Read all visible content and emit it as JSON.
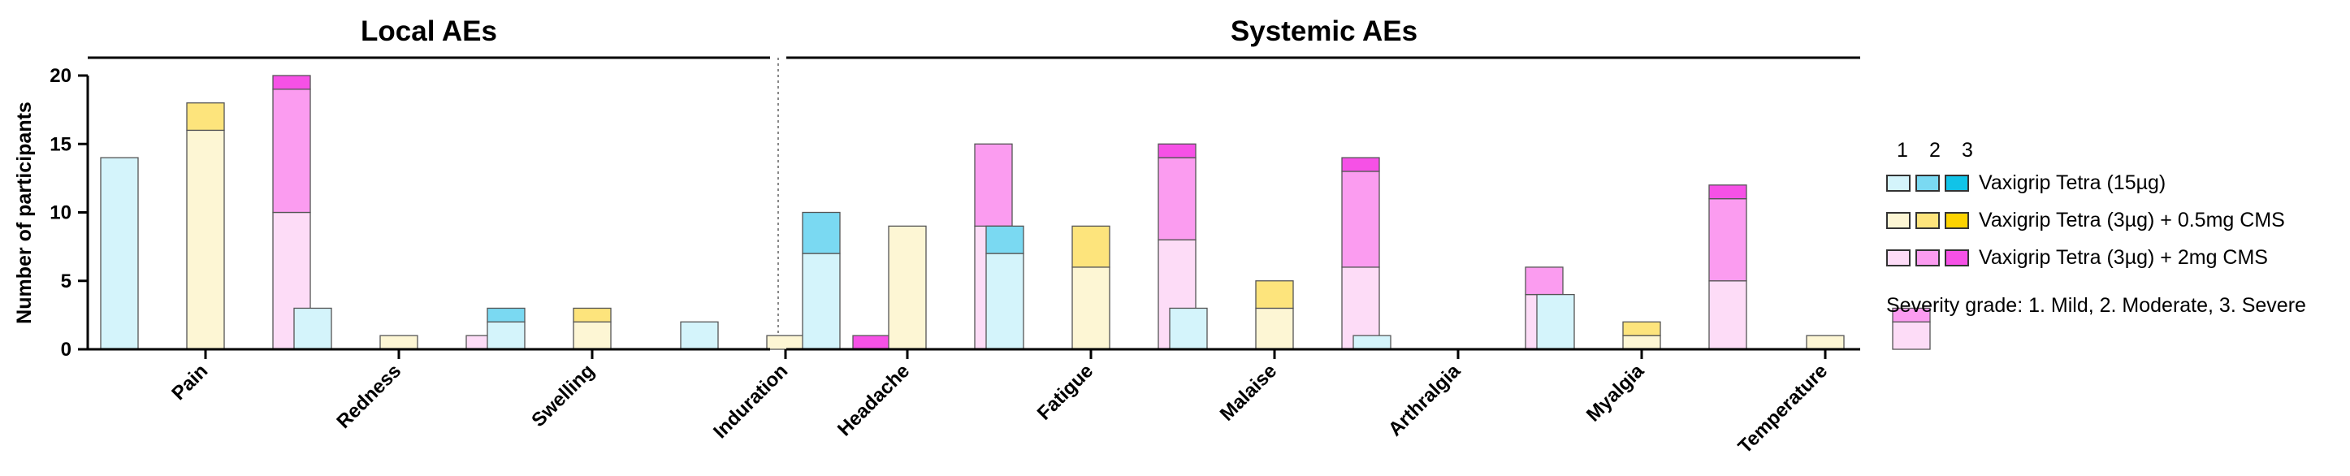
{
  "chart_data": {
    "type": "bar",
    "stacked": true,
    "ylabel": "Number of participants",
    "ylim": [
      0,
      20
    ],
    "yticks": [
      0,
      5,
      10,
      15,
      20
    ],
    "severity_labels": [
      "1",
      "2",
      "3"
    ],
    "groups": [
      {
        "name": "Vaxigrip Tetra (15µg)",
        "colors": [
          "#d4f4fb",
          "#7ad9f2",
          "#11c3e8"
        ]
      },
      {
        "name": "Vaxigrip Tetra (3µg) + 0.5mg CMS",
        "colors": [
          "#fdf6d4",
          "#fde47c",
          "#fdd300"
        ]
      },
      {
        "name": "Vaxigrip Tetra (3µg) + 2mg CMS",
        "colors": [
          "#fddcf7",
          "#fb9cf0",
          "#f651e6"
        ]
      }
    ],
    "panels": [
      {
        "title": "Local AEs",
        "categories": [
          "Pain",
          "Redness",
          "Swelling",
          "Induration"
        ],
        "data": [
          [
            [
              14,
              0,
              0
            ],
            [
              16,
              2,
              0
            ],
            [
              10,
              9,
              1
            ]
          ],
          [
            [
              3,
              0,
              0
            ],
            [
              1,
              0,
              0
            ],
            [
              1,
              0,
              0
            ]
          ],
          [
            [
              2,
              1,
              0
            ],
            [
              2,
              1,
              0
            ],
            [
              0,
              0,
              0
            ]
          ],
          [
            [
              2,
              0,
              0
            ],
            [
              1,
              0,
              0
            ],
            [
              0,
              0,
              1
            ]
          ]
        ]
      },
      {
        "title": "Systemic AEs",
        "categories": [
          "Headache",
          "Fatigue",
          "Malaise",
          "Arthralgia",
          "Myalgia",
          "Temperature"
        ],
        "data": [
          [
            [
              7,
              3,
              0
            ],
            [
              9,
              0,
              0
            ],
            [
              9,
              6,
              0
            ]
          ],
          [
            [
              7,
              2,
              0
            ],
            [
              6,
              3,
              0
            ],
            [
              8,
              6,
              1
            ]
          ],
          [
            [
              3,
              0,
              0
            ],
            [
              3,
              2,
              0
            ],
            [
              6,
              7,
              1
            ]
          ],
          [
            [
              1,
              0,
              0
            ],
            [
              0,
              0,
              0
            ],
            [
              4,
              2,
              0
            ]
          ],
          [
            [
              4,
              0,
              0
            ],
            [
              1,
              1,
              0
            ],
            [
              5,
              6,
              1
            ]
          ],
          [
            [
              0,
              0,
              0
            ],
            [
              1,
              0,
              0
            ],
            [
              2,
              1,
              0
            ]
          ]
        ]
      }
    ],
    "note": "Severity grade: 1. Mild, 2. Moderate, 3. Severe"
  }
}
